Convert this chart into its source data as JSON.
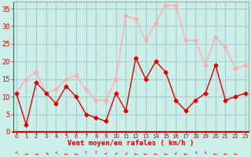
{
  "hours": [
    0,
    1,
    2,
    3,
    4,
    5,
    6,
    7,
    8,
    9,
    10,
    11,
    12,
    13,
    14,
    15,
    16,
    17,
    18,
    19,
    20,
    21,
    22,
    23
  ],
  "wind_avg": [
    11,
    2,
    14,
    11,
    8,
    13,
    10,
    5,
    4,
    3,
    11,
    6,
    21,
    15,
    20,
    17,
    9,
    6,
    9,
    11,
    19,
    9,
    10,
    11
  ],
  "wind_gust": [
    11,
    15,
    17,
    11,
    12,
    15,
    16,
    12,
    9,
    9,
    15,
    33,
    32,
    26,
    31,
    36,
    36,
    26,
    26,
    19,
    27,
    24,
    18,
    19
  ],
  "xlabel": "Vent moyen/en rafales ( km/h )",
  "ylim": [
    0,
    37
  ],
  "yticks": [
    0,
    5,
    10,
    15,
    20,
    25,
    30,
    35
  ],
  "bg_color": "#cceee8",
  "grid_color": "#aacccc",
  "avg_color": "#dd0000",
  "gust_color": "#ffaaaa",
  "xlabel_color": "#cc0000",
  "tick_color": "#cc0000",
  "line_width": 1.0,
  "marker_size": 2.5
}
